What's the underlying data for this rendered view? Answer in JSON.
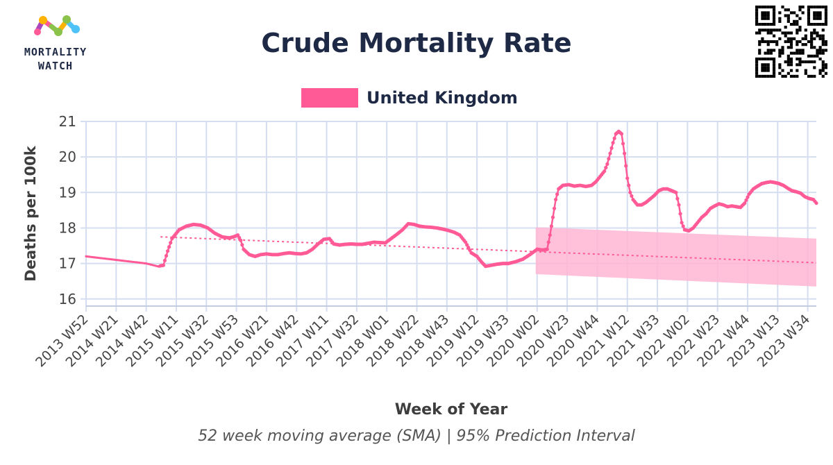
{
  "brand": {
    "name_line1": "MORTALITY",
    "name_line2": "WATCH"
  },
  "colors": {
    "series": "#ff5a96",
    "band": "#ffb6d2",
    "title": "#1e2a45",
    "grid": "#d5ddf0"
  },
  "chart_data": {
    "type": "line",
    "title": "Crude Mortality Rate",
    "subtitle": "52 week moving average (SMA) | 95% Prediction Interval",
    "xlabel": "Week of Year",
    "ylabel": "Deaths per 100k",
    "ylim": [
      15.8,
      21
    ],
    "yticks": [
      16,
      17,
      18,
      19,
      20,
      21
    ],
    "x_tick_labels": [
      "2013 W52",
      "2014 W21",
      "2014 W42",
      "2015 W11",
      "2015 W32",
      "2015 W53",
      "2016 W21",
      "2016 W42",
      "2017 W11",
      "2017 W32",
      "2018 W01",
      "2018 W22",
      "2018 W43",
      "2019 W12",
      "2019 W33",
      "2020 W02",
      "2020 W23",
      "2020 W44",
      "2021 W12",
      "2021 W33",
      "2022 W02",
      "2022 W23",
      "2022 W44",
      "2023 W13",
      "2023 W34"
    ],
    "grid": true,
    "legend_position": "top-center",
    "series": [
      {
        "name": "United Kingdom",
        "points": [
          [
            0,
            17.2
          ],
          [
            21,
            17.1
          ],
          [
            42,
            17.0
          ],
          [
            50,
            16.92
          ],
          [
            54,
            16.95
          ],
          [
            57,
            17.35
          ],
          [
            60,
            17.7
          ],
          [
            65,
            17.95
          ],
          [
            70,
            18.05
          ],
          [
            75,
            18.1
          ],
          [
            80,
            18.08
          ],
          [
            85,
            18.0
          ],
          [
            90,
            17.85
          ],
          [
            95,
            17.75
          ],
          [
            100,
            17.72
          ],
          [
            103,
            17.75
          ],
          [
            106,
            17.8
          ],
          [
            108,
            17.65
          ],
          [
            110,
            17.4
          ],
          [
            114,
            17.25
          ],
          [
            118,
            17.2
          ],
          [
            122,
            17.25
          ],
          [
            126,
            17.27
          ],
          [
            130,
            17.25
          ],
          [
            134,
            17.25
          ],
          [
            138,
            17.28
          ],
          [
            142,
            17.3
          ],
          [
            146,
            17.28
          ],
          [
            150,
            17.27
          ],
          [
            154,
            17.3
          ],
          [
            158,
            17.4
          ],
          [
            162,
            17.55
          ],
          [
            166,
            17.68
          ],
          [
            170,
            17.7
          ],
          [
            173,
            17.55
          ],
          [
            177,
            17.52
          ],
          [
            181,
            17.54
          ],
          [
            185,
            17.55
          ],
          [
            189,
            17.54
          ],
          [
            193,
            17.54
          ],
          [
            197,
            17.57
          ],
          [
            201,
            17.6
          ],
          [
            205,
            17.59
          ],
          [
            209,
            17.58
          ],
          [
            213,
            17.7
          ],
          [
            217,
            17.82
          ],
          [
            221,
            17.95
          ],
          [
            225,
            18.12
          ],
          [
            229,
            18.1
          ],
          [
            233,
            18.05
          ],
          [
            237,
            18.03
          ],
          [
            241,
            18.02
          ],
          [
            245,
            18.0
          ],
          [
            249,
            17.97
          ],
          [
            253,
            17.93
          ],
          [
            257,
            17.88
          ],
          [
            261,
            17.8
          ],
          [
            265,
            17.6
          ],
          [
            269,
            17.3
          ],
          [
            273,
            17.2
          ],
          [
            276,
            17.05
          ],
          [
            279,
            16.92
          ],
          [
            283,
            16.95
          ],
          [
            287,
            16.98
          ],
          [
            291,
            17.0
          ],
          [
            295,
            17.0
          ],
          [
            300,
            17.05
          ],
          [
            305,
            17.12
          ],
          [
            310,
            17.25
          ],
          [
            315,
            17.4
          ],
          [
            319,
            17.38
          ],
          [
            322,
            17.4
          ],
          [
            324,
            17.8
          ],
          [
            326,
            18.3
          ],
          [
            328,
            18.8
          ],
          [
            330,
            19.1
          ],
          [
            333,
            19.2
          ],
          [
            337,
            19.22
          ],
          [
            341,
            19.18
          ],
          [
            345,
            19.2
          ],
          [
            349,
            19.17
          ],
          [
            353,
            19.2
          ],
          [
            356,
            19.3
          ],
          [
            359,
            19.45
          ],
          [
            362,
            19.6
          ],
          [
            364,
            19.8
          ],
          [
            366,
            20.1
          ],
          [
            368,
            20.4
          ],
          [
            370,
            20.65
          ],
          [
            372,
            20.72
          ],
          [
            374,
            20.65
          ],
          [
            376,
            20.1
          ],
          [
            378,
            19.4
          ],
          [
            380,
            19.0
          ],
          [
            382,
            18.8
          ],
          [
            385,
            18.65
          ],
          [
            388,
            18.65
          ],
          [
            391,
            18.72
          ],
          [
            394,
            18.82
          ],
          [
            397,
            18.92
          ],
          [
            400,
            19.05
          ],
          [
            403,
            19.1
          ],
          [
            406,
            19.1
          ],
          [
            409,
            19.05
          ],
          [
            412,
            19.0
          ],
          [
            414,
            18.65
          ],
          [
            416,
            18.15
          ],
          [
            418,
            17.95
          ],
          [
            421,
            17.92
          ],
          [
            424,
            18.0
          ],
          [
            427,
            18.15
          ],
          [
            430,
            18.3
          ],
          [
            433,
            18.4
          ],
          [
            436,
            18.55
          ],
          [
            439,
            18.62
          ],
          [
            442,
            18.68
          ],
          [
            445,
            18.65
          ],
          [
            448,
            18.6
          ],
          [
            451,
            18.62
          ],
          [
            454,
            18.6
          ],
          [
            457,
            18.58
          ],
          [
            460,
            18.7
          ],
          [
            463,
            18.95
          ],
          [
            466,
            19.1
          ],
          [
            469,
            19.18
          ],
          [
            472,
            19.25
          ],
          [
            475,
            19.28
          ],
          [
            478,
            19.3
          ],
          [
            481,
            19.28
          ],
          [
            484,
            19.25
          ],
          [
            487,
            19.2
          ],
          [
            490,
            19.12
          ],
          [
            493,
            19.05
          ],
          [
            496,
            19.02
          ],
          [
            499,
            18.98
          ],
          [
            502,
            18.88
          ],
          [
            505,
            18.83
          ],
          [
            508,
            18.8
          ],
          [
            510,
            18.7
          ]
        ]
      }
    ],
    "trend_baseline": [
      [
        52,
        17.75
      ],
      [
        510,
        17.02
      ]
    ],
    "prediction_interval": {
      "label": "95% Prediction Interval",
      "start": [
        314,
        16.7,
        18.02
      ],
      "end": [
        510,
        16.35,
        17.7
      ]
    }
  }
}
